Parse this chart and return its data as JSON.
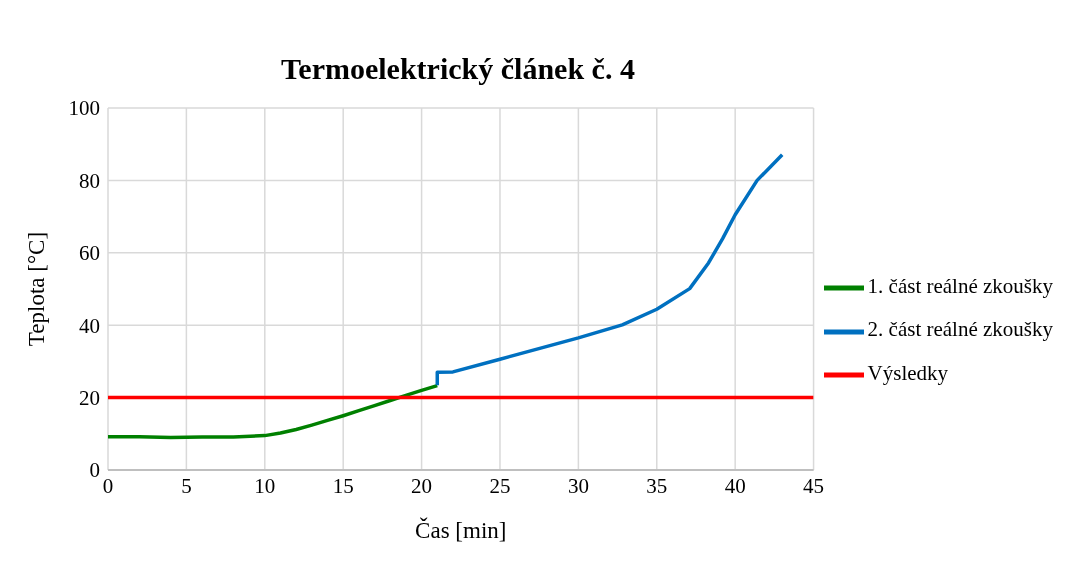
{
  "chart_data": {
    "type": "line",
    "title": "Termoelektrický článek č. 4",
    "xlabel": "Čas [min]",
    "ylabel": "Teplota [°C]",
    "xlim": [
      0,
      45
    ],
    "xticks": [
      0,
      5,
      10,
      15,
      20,
      25,
      30,
      35,
      40,
      45
    ],
    "ylim": [
      0,
      100
    ],
    "yticks": [
      0,
      20,
      40,
      60,
      80,
      100
    ],
    "grid": true,
    "legend": "right",
    "marker": "none",
    "line_style": "solid",
    "series": [
      {
        "name": "1. část reálné zkoušky",
        "color": "#008000",
        "x": [
          0,
          2,
          4,
          6,
          8,
          10,
          11,
          12,
          13,
          14,
          15,
          16,
          17,
          18,
          19,
          20,
          21
        ],
        "values": [
          9.2,
          9.2,
          9.0,
          9.1,
          9.1,
          9.5,
          10.2,
          11.2,
          12.4,
          13.7,
          15.0,
          16.4,
          17.8,
          19.2,
          20.6,
          22.0,
          23.3
        ]
      },
      {
        "name": "2. část reálné zkoušky",
        "color": "#0070c0",
        "x": [
          21,
          21,
          22,
          25,
          30,
          32.8,
          35,
          37.1,
          38.3,
          39.2,
          40,
          41.4,
          43
        ],
        "values": [
          23.4,
          27.0,
          27.1,
          30.6,
          36.5,
          40.1,
          44.4,
          50.1,
          57.2,
          63.9,
          70.5,
          80,
          87.1
        ]
      },
      {
        "name": "Výsledky",
        "color": "#ff0000",
        "x": [
          0,
          45
        ],
        "values": [
          20,
          20
        ]
      }
    ]
  }
}
